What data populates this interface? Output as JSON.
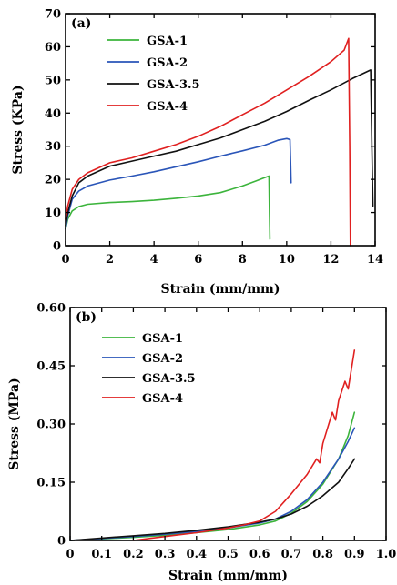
{
  "chart_data": [
    {
      "type": "line",
      "panel_label": "(a)",
      "xlabel": "Strain (mm/mm)",
      "ylabel": "Stress (KPa)",
      "xlim": [
        0,
        14
      ],
      "ylim": [
        0,
        70
      ],
      "xticks": [
        0,
        2,
        4,
        6,
        8,
        10,
        12,
        14
      ],
      "yticks": [
        0,
        10,
        20,
        30,
        40,
        50,
        60,
        70
      ],
      "xtick_labels": [
        "0",
        "2",
        "4",
        "6",
        "8",
        "10",
        "12",
        "14"
      ],
      "ytick_labels": [
        "0",
        "10",
        "20",
        "30",
        "40",
        "50",
        "60",
        "70"
      ],
      "legend_position": "top-left",
      "grid": false,
      "series": [
        {
          "name": "GSA-1",
          "color": "#3cb43c",
          "x": [
            0,
            0.1,
            0.3,
            0.6,
            1,
            2,
            3,
            4,
            5,
            6,
            7,
            8,
            8.6,
            9.0,
            9.2,
            9.22,
            9.24
          ],
          "y": [
            5,
            8,
            10.5,
            11.8,
            12.5,
            13,
            13.3,
            13.7,
            14.3,
            15,
            16,
            18,
            19.5,
            20.5,
            21,
            10,
            2
          ]
        },
        {
          "name": "GSA-2",
          "color": "#2a55b8",
          "x": [
            0,
            0.1,
            0.3,
            0.6,
            1,
            2,
            3,
            4,
            5,
            6,
            7,
            8,
            9,
            9.6,
            10.0,
            10.15,
            10.18,
            10.2
          ],
          "y": [
            5,
            9,
            14,
            16.5,
            18,
            19.8,
            21,
            22.3,
            23.8,
            25.3,
            27,
            28.6,
            30.3,
            31.8,
            32.3,
            32,
            25,
            19
          ]
        },
        {
          "name": "GSA-3.5",
          "color": "#111111",
          "x": [
            0,
            0.1,
            0.3,
            0.6,
            1,
            2,
            3,
            4,
            5,
            6,
            7,
            8,
            9,
            10,
            11,
            12,
            13,
            13.8,
            13.85,
            13.9
          ],
          "y": [
            6,
            10,
            15,
            19,
            21,
            24,
            25.5,
            27,
            28.5,
            30.5,
            32.5,
            35,
            37.5,
            40.5,
            43.8,
            47,
            50.5,
            53,
            30,
            12
          ]
        },
        {
          "name": "GSA-4",
          "color": "#e02020",
          "x": [
            0,
            0.1,
            0.3,
            0.6,
            1,
            2,
            3,
            4,
            5,
            6,
            7,
            8,
            9,
            10,
            11,
            12,
            12.6,
            12.8,
            12.85,
            12.88
          ],
          "y": [
            8,
            12,
            17,
            20,
            22,
            25,
            26.5,
            28.5,
            30.5,
            33,
            36,
            39.5,
            43,
            47,
            51,
            55.5,
            59,
            62.5,
            30,
            0
          ]
        }
      ]
    },
    {
      "type": "line",
      "panel_label": "(b)",
      "xlabel": "Strain (mm/mm)",
      "ylabel": "Stress (MPa)",
      "xlim": [
        0,
        1.0
      ],
      "ylim": [
        0,
        0.6
      ],
      "xticks": [
        0,
        0.1,
        0.2,
        0.3,
        0.4,
        0.5,
        0.6,
        0.7,
        0.8,
        0.9,
        1.0
      ],
      "yticks": [
        0,
        0.15,
        0.3,
        0.45,
        0.6
      ],
      "xtick_labels": [
        "0",
        "0.1",
        "0.2",
        "0.3",
        "0.4",
        "0.5",
        "0.6",
        "0.7",
        "0.8",
        "0.9",
        "1.0"
      ],
      "ytick_labels": [
        "0",
        "0.15",
        "0.30",
        "0.45",
        "0.60"
      ],
      "legend_position": "top-left",
      "grid": false,
      "series": [
        {
          "name": "GSA-1",
          "color": "#3cb43c",
          "x": [
            0,
            0.1,
            0.2,
            0.3,
            0.4,
            0.5,
            0.6,
            0.65,
            0.7,
            0.75,
            0.8,
            0.85,
            0.88,
            0.9
          ],
          "y": [
            0,
            0.004,
            0.008,
            0.013,
            0.02,
            0.028,
            0.04,
            0.05,
            0.07,
            0.1,
            0.145,
            0.21,
            0.27,
            0.33
          ]
        },
        {
          "name": "GSA-2",
          "color": "#2a55b8",
          "x": [
            0,
            0.1,
            0.2,
            0.3,
            0.4,
            0.5,
            0.6,
            0.65,
            0.7,
            0.75,
            0.8,
            0.85,
            0.88,
            0.9
          ],
          "y": [
            0,
            0.005,
            0.01,
            0.016,
            0.023,
            0.032,
            0.045,
            0.055,
            0.075,
            0.105,
            0.15,
            0.21,
            0.255,
            0.29
          ]
        },
        {
          "name": "GSA-3.5",
          "color": "#111111",
          "x": [
            0,
            0.1,
            0.2,
            0.3,
            0.4,
            0.5,
            0.6,
            0.65,
            0.7,
            0.75,
            0.8,
            0.85,
            0.88,
            0.9
          ],
          "y": [
            0,
            0.006,
            0.012,
            0.018,
            0.026,
            0.035,
            0.047,
            0.055,
            0.068,
            0.088,
            0.115,
            0.15,
            0.185,
            0.21
          ]
        },
        {
          "name": "GSA-4",
          "color": "#e02020",
          "x": [
            0.2,
            0.3,
            0.4,
            0.5,
            0.55,
            0.6,
            0.65,
            0.7,
            0.75,
            0.78,
            0.79,
            0.8,
            0.83,
            0.84,
            0.85,
            0.87,
            0.88,
            0.9
          ],
          "y": [
            0,
            0.01,
            0.02,
            0.032,
            0.04,
            0.05,
            0.075,
            0.12,
            0.17,
            0.21,
            0.2,
            0.25,
            0.33,
            0.31,
            0.36,
            0.41,
            0.39,
            0.49
          ]
        }
      ]
    }
  ]
}
